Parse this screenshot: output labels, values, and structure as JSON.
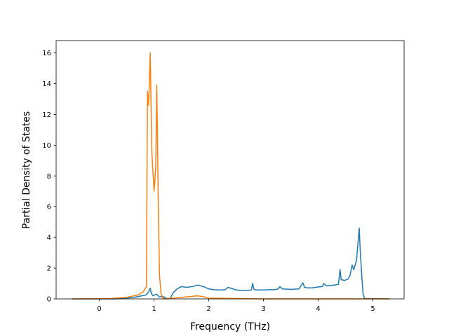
{
  "chart_data": {
    "type": "line",
    "title": "",
    "xlabel": "Frequency (THz)",
    "ylabel": "Partial Density of States",
    "xlim": [
      -0.79,
      5.57
    ],
    "ylim": [
      0,
      16.8
    ],
    "xticks": [
      0,
      1,
      2,
      3,
      4,
      5
    ],
    "yticks": [
      0,
      2,
      4,
      6,
      8,
      10,
      12,
      14,
      16
    ],
    "grid": false,
    "legend": "none",
    "series": [
      {
        "color": "#1f77b4",
        "x": [
          -0.5,
          0.3,
          0.6,
          0.85,
          0.9,
          0.93,
          0.95,
          0.98,
          1.0,
          1.05,
          1.1,
          1.15,
          1.25,
          1.3,
          1.35,
          1.42,
          1.5,
          1.6,
          1.7,
          1.8,
          1.9,
          2.0,
          2.1,
          2.2,
          2.3,
          2.35,
          2.4,
          2.5,
          2.6,
          2.7,
          2.78,
          2.8,
          2.83,
          2.9,
          3.0,
          3.1,
          3.2,
          3.27,
          3.3,
          3.35,
          3.5,
          3.65,
          3.72,
          3.75,
          3.8,
          3.9,
          4.0,
          4.08,
          4.1,
          4.15,
          4.3,
          4.37,
          4.4,
          4.42,
          4.48,
          4.55,
          4.58,
          4.62,
          4.65,
          4.7,
          4.75,
          4.77,
          4.8,
          4.82,
          4.85,
          5.3
        ],
        "y": [
          0,
          0,
          0.08,
          0.25,
          0.45,
          0.7,
          0.35,
          0.2,
          0.25,
          0.3,
          0.12,
          0.18,
          0,
          0.05,
          0.4,
          0.65,
          0.8,
          0.75,
          0.8,
          0.9,
          0.8,
          0.65,
          0.6,
          0.58,
          0.6,
          0.75,
          0.7,
          0.58,
          0.55,
          0.55,
          0.58,
          1.0,
          0.6,
          0.58,
          0.58,
          0.6,
          0.6,
          0.65,
          0.8,
          0.65,
          0.62,
          0.65,
          1.05,
          0.75,
          0.72,
          0.72,
          0.78,
          0.8,
          1.0,
          0.85,
          0.9,
          0.95,
          1.9,
          1.25,
          1.2,
          1.3,
          1.5,
          2.2,
          1.9,
          2.5,
          4.6,
          3.0,
          1.3,
          0.3,
          0.02,
          0
        ]
      },
      {
        "color": "#ff7f0e",
        "x": [
          -0.5,
          0.2,
          0.5,
          0.7,
          0.8,
          0.86,
          0.88,
          0.9,
          0.93,
          0.96,
          1.0,
          1.03,
          1.05,
          1.08,
          1.1,
          1.13,
          1.16,
          1.2,
          1.5,
          1.8,
          1.9,
          2.0,
          2.5,
          3.0,
          5.3
        ],
        "y": [
          0,
          0.02,
          0.1,
          0.25,
          0.45,
          0.8,
          13.5,
          12.6,
          16.0,
          9.5,
          7.0,
          8.5,
          13.9,
          5.5,
          1.5,
          0.3,
          0.05,
          0,
          0.1,
          0.2,
          0.15,
          0.05,
          0.02,
          0,
          0
        ]
      }
    ]
  }
}
